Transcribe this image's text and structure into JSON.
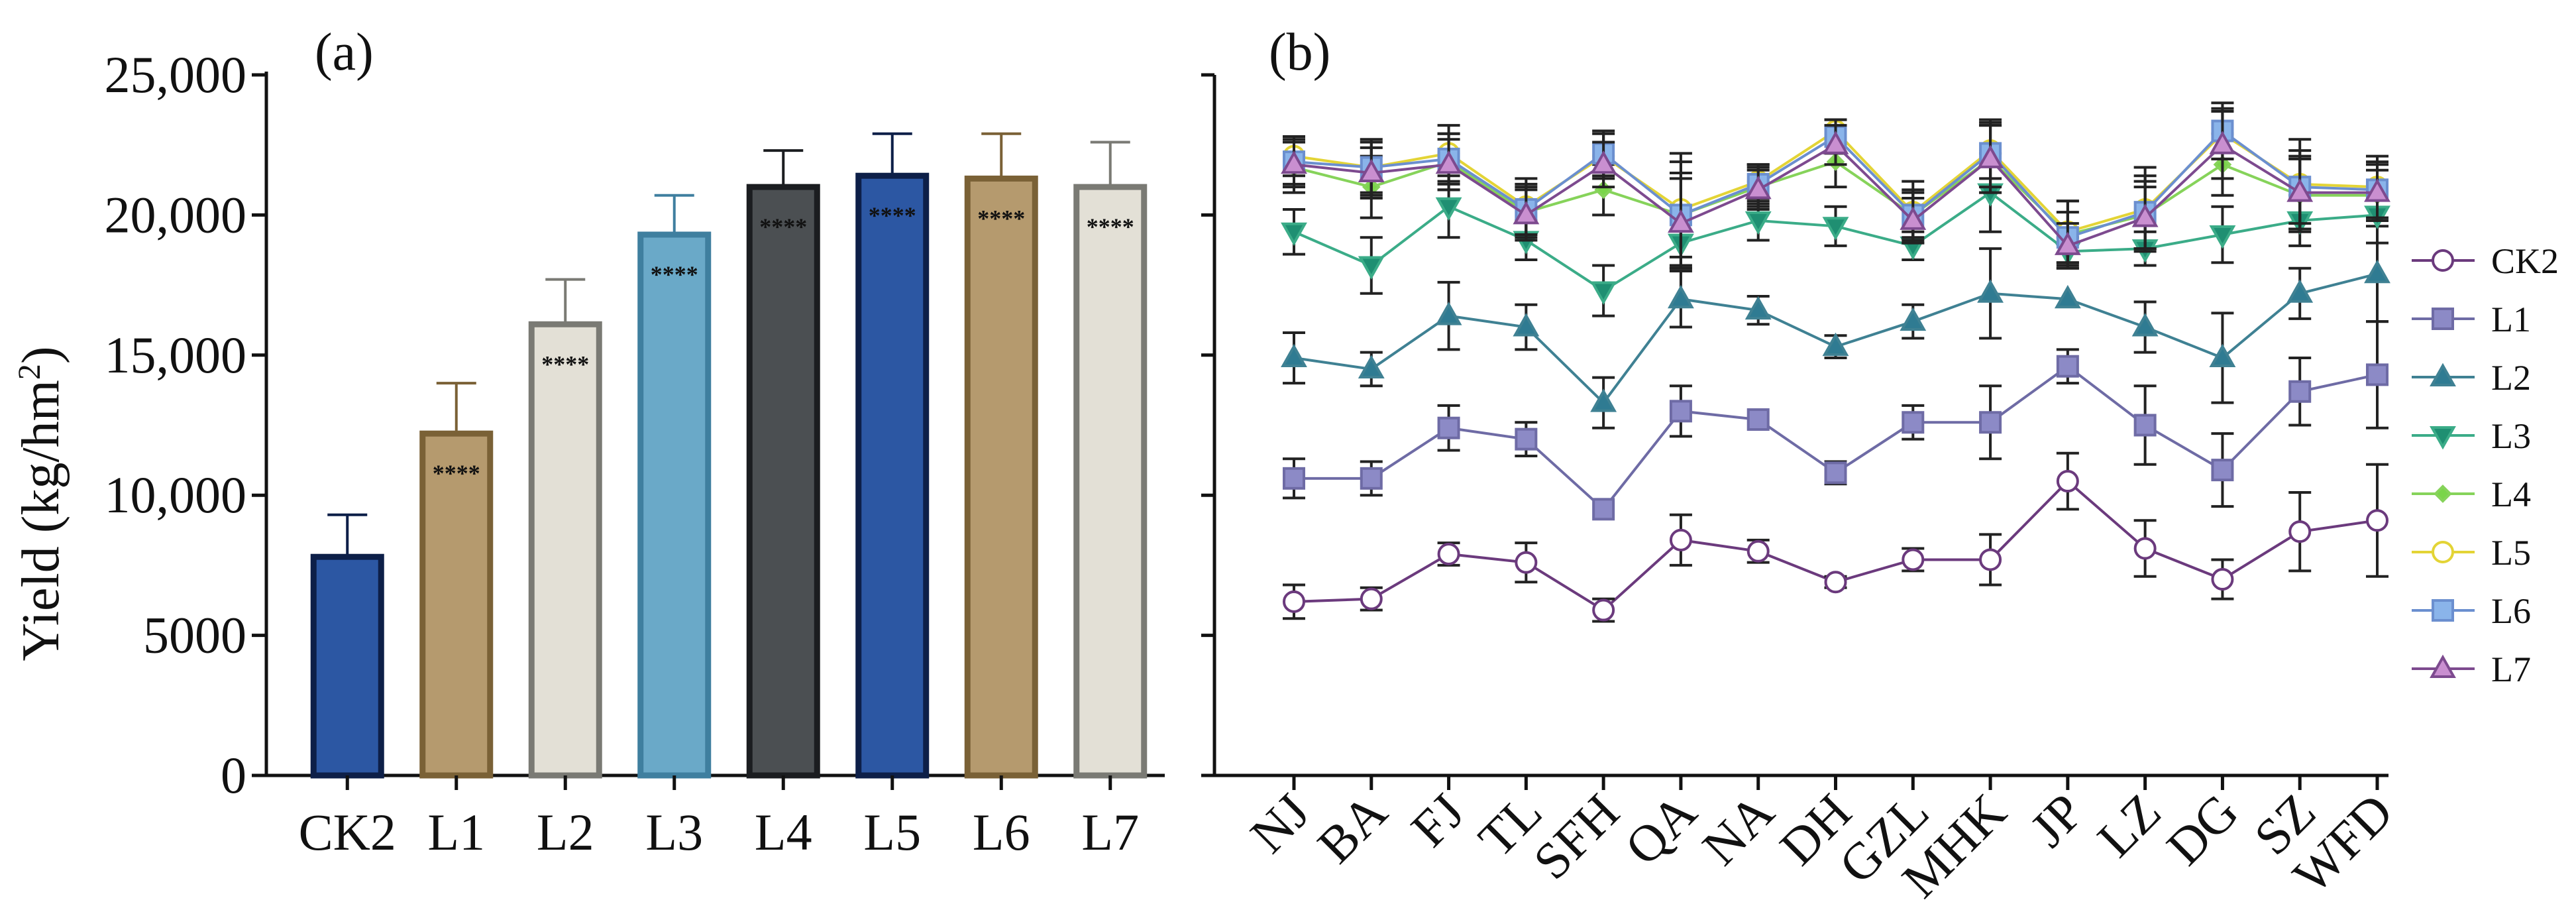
{
  "chart_data": [
    {
      "panel": "(a)",
      "type": "bar",
      "ylabel": "Yield (kg/hm",
      "ylabel_sup": "2",
      "ylabel_close": ")",
      "ylim": [
        0,
        25000
      ],
      "yticks": [
        0,
        5000,
        10000,
        15000,
        20000,
        25000
      ],
      "ytick_labels": [
        "0",
        "5000",
        "10,000",
        "15,000",
        "20,000",
        "25,000"
      ],
      "categories": [
        "CK2",
        "L1",
        "L2",
        "L3",
        "L4",
        "L5",
        "L6",
        "L7"
      ],
      "values": [
        7800,
        12200,
        16100,
        19300,
        21000,
        21400,
        21300,
        21000
      ],
      "errors": [
        1500,
        1800,
        1600,
        1400,
        1300,
        1500,
        1600,
        1600
      ],
      "significance": [
        "",
        "****",
        "****",
        "****",
        "****",
        "****",
        "****",
        "****"
      ],
      "fill_colors": [
        "#2c57a3",
        "#b59a6e",
        "#e3e0d6",
        "#6aa9c8",
        "#4b4f52",
        "#2c57a3",
        "#b59a6e",
        "#e3e0d6"
      ],
      "edge_colors": [
        "#0d1f48",
        "#7a6136",
        "#7a7a74",
        "#3f7f9f",
        "#1b1d20",
        "#0d1f48",
        "#7a6136",
        "#7a7a74"
      ]
    },
    {
      "panel": "(b)",
      "type": "line",
      "ylim": [
        0,
        25000
      ],
      "yticks": [
        0,
        5000,
        10000,
        15000,
        20000,
        25000
      ],
      "categories": [
        "NJ",
        "BA",
        "FJ",
        "TL",
        "SFH",
        "QA",
        "NA",
        "DH",
        "GZL",
        "MHK",
        "JP",
        "LZ",
        "DG",
        "SZ",
        "WFD"
      ],
      "series": [
        {
          "name": "CK2",
          "marker": "circle-open",
          "color": "#6b3a7d",
          "values": [
            6200,
            6300,
            7900,
            7600,
            5900,
            8400,
            8000,
            6900,
            7700,
            7700,
            10500,
            8100,
            7000,
            8700,
            9100
          ],
          "errors": [
            600,
            400,
            400,
            700,
            400,
            900,
            400,
            200,
            400,
            900,
            1000,
            1000,
            700,
            1400,
            2000
          ]
        },
        {
          "name": "L1",
          "marker": "square",
          "color": "#6e6ba5",
          "fill": "#8c8ac6",
          "values": [
            10600,
            10600,
            12400,
            12000,
            9500,
            13000,
            12700,
            10800,
            12600,
            12600,
            14600,
            12500,
            10900,
            13700,
            14300
          ],
          "errors": [
            700,
            600,
            800,
            600,
            0,
            900,
            0,
            400,
            600,
            1300,
            600,
            1400,
            1300,
            1200,
            1900
          ]
        },
        {
          "name": "L2",
          "marker": "triangle-up",
          "color": "#3f8193",
          "fill": "#2f7b92",
          "values": [
            14900,
            14500,
            16400,
            16000,
            13300,
            17000,
            16600,
            15300,
            16200,
            17200,
            17000,
            16000,
            14900,
            17200,
            17900
          ],
          "errors": [
            900,
            600,
            1200,
            800,
            900,
            1000,
            500,
            400,
            600,
            1600,
            0,
            900,
            1600,
            900,
            1700
          ]
        },
        {
          "name": "L3",
          "marker": "triangle-down",
          "color": "#3bac88",
          "fill": "#1f8f72",
          "values": [
            19400,
            18200,
            20300,
            19100,
            17300,
            19000,
            19800,
            19600,
            18900,
            20800,
            18700,
            18800,
            19300,
            19800,
            20000
          ],
          "errors": [
            800,
            1000,
            1100,
            700,
            900,
            900,
            700,
            700,
            500,
            1400,
            500,
            600,
            1000,
            900,
            1000
          ]
        },
        {
          "name": "L4",
          "marker": "diamond",
          "color": "#86d35a",
          "fill": "#7ad54a",
          "values": [
            21700,
            21000,
            21900,
            20100,
            20900,
            20000,
            21000,
            21900,
            20000,
            22000,
            19300,
            20000,
            21800,
            20700,
            20700
          ],
          "errors": [
            900,
            1100,
            1000,
            900,
            900,
            1500,
            700,
            900,
            800,
            1200,
            1200,
            1200,
            1100,
            1300,
            900
          ]
        },
        {
          "name": "L5",
          "marker": "circle-open",
          "color": "#e3d436",
          "values": [
            22100,
            21700,
            22200,
            20300,
            22100,
            20200,
            21200,
            23000,
            20100,
            22300,
            19400,
            20200,
            22900,
            21100,
            21000
          ],
          "errors": [
            700,
            1000,
            1000,
            1000,
            800,
            2000,
            600,
            400,
            1100,
            1000,
            1100,
            1500,
            900,
            1600,
            1100
          ]
        },
        {
          "name": "L6",
          "marker": "square",
          "color": "#6b8fcf",
          "fill": "#8ab4ea",
          "values": [
            21900,
            21700,
            22000,
            20200,
            22200,
            20000,
            21100,
            22800,
            20000,
            22200,
            19200,
            20100,
            23000,
            21000,
            20900
          ],
          "errors": [
            800,
            900,
            900,
            900,
            800,
            1900,
            700,
            600,
            900,
            1200,
            900,
            1300,
            1000,
            1300,
            1000
          ]
        },
        {
          "name": "L7",
          "marker": "triangle-up",
          "color": "#7d4a8f",
          "fill": "#c98fd0",
          "values": [
            21800,
            21500,
            21800,
            20000,
            21800,
            19700,
            20900,
            22500,
            19800,
            22000,
            18900,
            19900,
            22500,
            20800,
            20800
          ],
          "errors": [
            800,
            900,
            900,
            900,
            800,
            1600,
            700,
            700,
            800,
            1200,
            800,
            1100,
            1200,
            1300,
            1000
          ]
        }
      ]
    }
  ]
}
